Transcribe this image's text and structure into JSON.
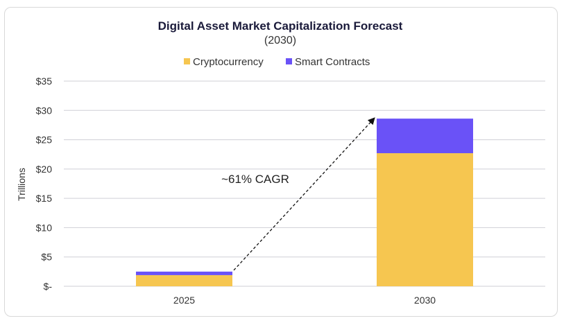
{
  "chart_data": {
    "type": "bar",
    "stacked": true,
    "title": "Digital Asset Market Capitalization Forecast",
    "subtitle": "(2030)",
    "ylabel": "Trillions",
    "xlabel": "",
    "categories": [
      "2025",
      "2030"
    ],
    "series": [
      {
        "name": "Cryptocurrency",
        "color": "#f6c650",
        "values": [
          1.9,
          22.7
        ]
      },
      {
        "name": "Smart Contracts",
        "color": "#6a52f7",
        "values": [
          0.6,
          5.9
        ]
      }
    ],
    "ylim": [
      0,
      35
    ],
    "yticks": [
      0,
      5,
      10,
      15,
      20,
      25,
      30,
      35
    ],
    "ytick_labels": [
      "$-",
      "$5",
      "$10",
      "$15",
      "$20",
      "$25",
      "$30",
      "$35"
    ],
    "grid": true,
    "legend": "top",
    "annotation": {
      "text": "~61% CAGR",
      "arrow_from": "2025",
      "arrow_to": "2030"
    }
  }
}
